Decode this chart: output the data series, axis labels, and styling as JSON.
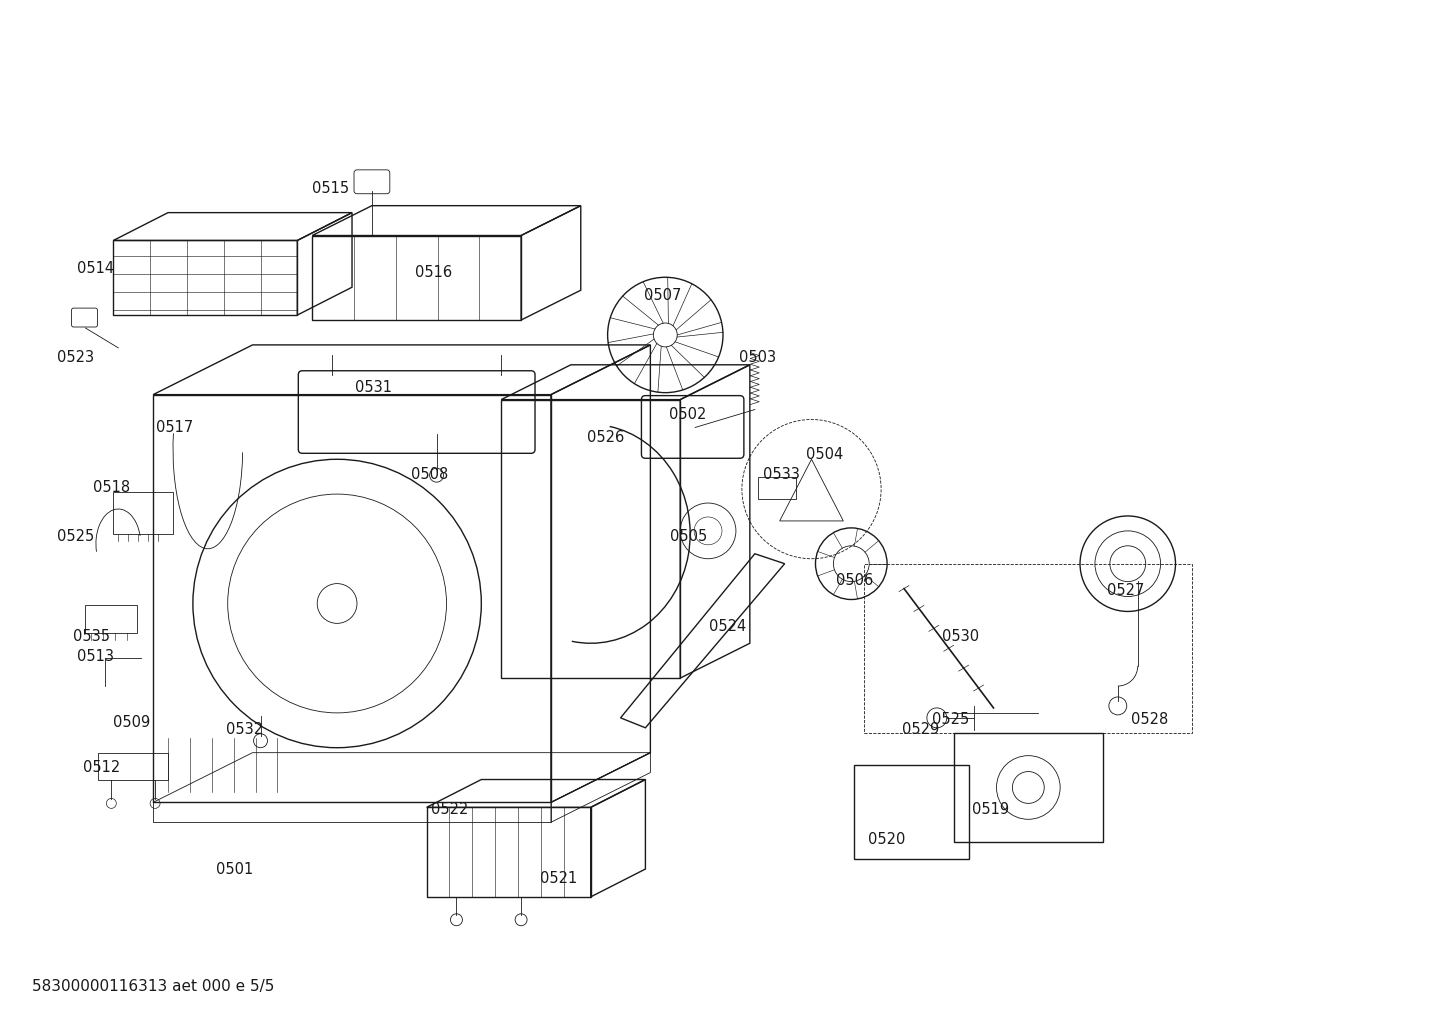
{
  "background_color": "#ffffff",
  "line_color": "#1a1a1a",
  "label_color": "#1a1a1a",
  "footer_text": "58300000116313 aet 000 e 5/5",
  "footer_fontsize": 11,
  "label_fontsize": 10.5,
  "fig_width": 14.42,
  "fig_height": 10.19,
  "dpi": 100
}
